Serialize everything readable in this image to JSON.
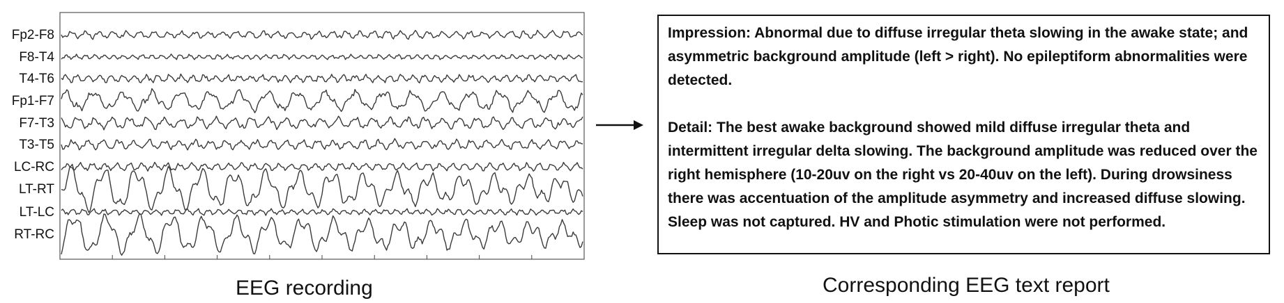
{
  "eeg": {
    "channels": [
      "Fp2-F8",
      "F8-T4",
      "T4-T6",
      "Fp1-F7",
      "F7-T3",
      "T3-T5",
      "LC-RC",
      "LT-RT",
      "LT-LC",
      "RT-RC"
    ],
    "caption": "EEG recording"
  },
  "report": {
    "impression": "Impression: Abnormal due to diffuse irregular theta slowing in the awake state; and asymmetric background amplitude (left > right). No epileptiform abnormalities were detected.",
    "detail": "Detail: The best awake background showed mild diffuse irregular theta and intermittent irregular delta slowing. The background amplitude was reduced over the right hemisphere (10-20uv on the right vs 20-40uv on the left). During drowsiness there was accentuation of the amplitude asymmetry and increased diffuse slowing. Sleep was not captured. HV and Photic stimulation were not performed.",
    "caption": "Corresponding EEG text report"
  }
}
